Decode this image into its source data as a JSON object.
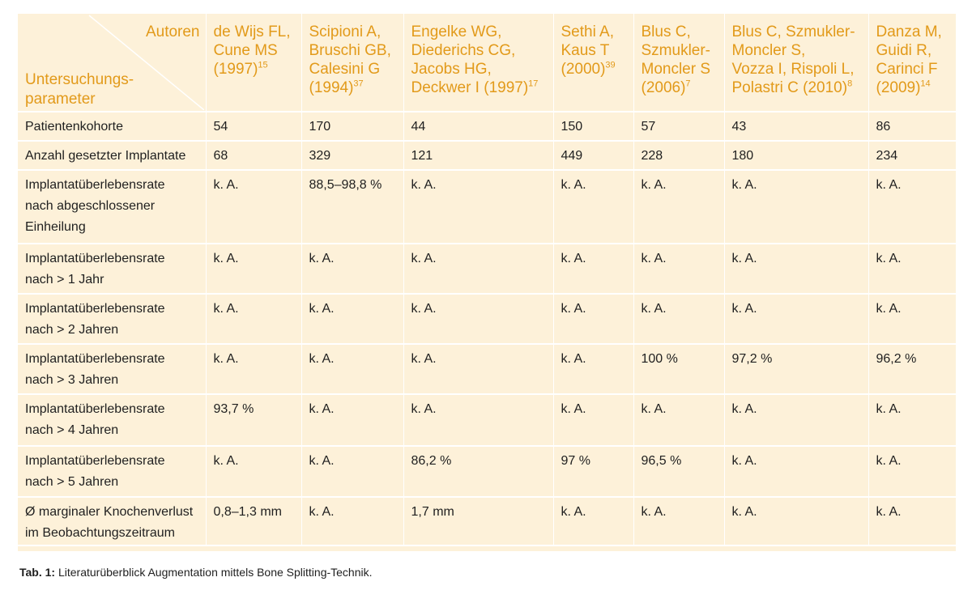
{
  "table": {
    "corner_top": "Autoren",
    "corner_bottom": "Untersuchungs-\nparameter",
    "columns": [
      {
        "text": "de Wijs FL,\nCune MS\n(1997)",
        "ref": "15"
      },
      {
        "text": "Scipioni A,\nBruschi GB,\nCalesini G\n(1994)",
        "ref": "37"
      },
      {
        "text": "Engelke WG,\nDiederichs CG,\nJacobs HG,\nDeckwer I (1997)",
        "ref": "17"
      },
      {
        "text": "Sethi A,\nKaus T\n(2000)",
        "ref": "39"
      },
      {
        "text": "Blus C,\nSzmukler-\nMoncler S\n(2006)",
        "ref": "7"
      },
      {
        "text": "Blus C, Szmukler-\nMoncler S,\nVozza I, Rispoli L,\nPolastri C (2010)",
        "ref": "8"
      },
      {
        "text": "Danza M,\nGuidi R,\nCarinci F\n(2009)",
        "ref": "14"
      }
    ],
    "rows": [
      {
        "label": "Patientenkohorte",
        "values": [
          "54",
          "170",
          "44",
          "150",
          "57",
          "43",
          "86"
        ]
      },
      {
        "label": "Anzahl gesetzter Implantate",
        "values": [
          "68",
          "329",
          "121",
          "449",
          "228",
          "180",
          "234"
        ]
      },
      {
        "label": "Implantatüberlebensrate\nnach abgeschlossener\nEinheilung",
        "values": [
          "k. A.",
          "88,5–98,8 %",
          "k. A.",
          "k. A.",
          "k. A.",
          "k. A.",
          "k. A."
        ]
      },
      {
        "label": "Implantatüberlebensrate\nnach > 1 Jahr",
        "values": [
          "k. A.",
          "k. A.",
          "k. A.",
          "k. A.",
          "k. A.",
          "k. A.",
          "k. A."
        ]
      },
      {
        "label": "Implantatüberlebensrate\nnach > 2 Jahren",
        "values": [
          "k. A.",
          "k. A.",
          "k. A.",
          "k. A.",
          "k. A.",
          "k. A.",
          "k. A."
        ]
      },
      {
        "label": "Implantatüberlebensrate\nnach > 3 Jahren",
        "values": [
          "k. A.",
          "k. A.",
          "k. A.",
          "k. A.",
          "100 %",
          "97,2 %",
          "96,2 %"
        ]
      },
      {
        "label": "Implantatüberlebensrate\nnach > 4 Jahren",
        "values": [
          "93,7 %",
          "k. A.",
          "k. A.",
          "k. A.",
          "k. A.",
          "k. A.",
          "k. A."
        ]
      },
      {
        "label": "Implantatüberlebensrate\nnach > 5 Jahren",
        "values": [
          "k. A.",
          "k. A.",
          "86,2 %",
          "97 %",
          "96,5 %",
          "k. A.",
          "k. A."
        ]
      },
      {
        "label": "Ø marginaler Knochenverlust\nim Beobachtungszeitraum",
        "values": [
          "0,8–1,3 mm",
          "k. A.",
          "1,7 mm",
          "k. A.",
          "k. A.",
          "k. A.",
          "k. A."
        ]
      }
    ]
  },
  "caption": {
    "label": "Tab. 1:",
    "text": "Literaturüberblick Augmentation mittels Bone Splitting-Technik."
  },
  "colors": {
    "background": "#fdf1d9",
    "accent": "#e29a1a",
    "text": "#1f1f1f"
  }
}
